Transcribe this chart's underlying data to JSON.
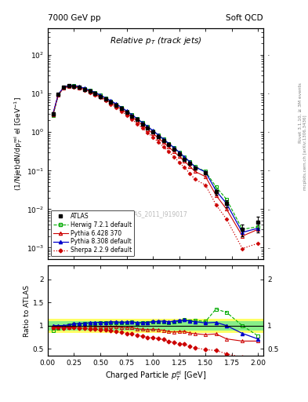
{
  "title_top_left": "7000 GeV pp",
  "title_top_right": "Soft QCD",
  "right_label_top": "Rivet 3.1.10, ≥ 3M events",
  "right_label_bot": "mcplots.cern.ch [arXiv:1306.3436]",
  "watermark": "ATLAS_2011_I919017",
  "plot_title": "Relative p$_{T}$ (track jets)",
  "ylabel_main": "(1/Njet)dN/dp$^{rel}_{T}$ el [GeV$^{-1}$]",
  "ylabel_ratio": "Ratio to ATLAS",
  "xlabel": "Charged Particle $p^{el}_{T}$ [GeV]",
  "atlas_x": [
    0.05,
    0.1,
    0.15,
    0.2,
    0.25,
    0.3,
    0.35,
    0.4,
    0.45,
    0.5,
    0.55,
    0.6,
    0.65,
    0.7,
    0.75,
    0.8,
    0.85,
    0.9,
    0.95,
    1.0,
    1.05,
    1.1,
    1.15,
    1.2,
    1.25,
    1.3,
    1.35,
    1.4,
    1.5,
    1.6,
    1.7,
    1.85,
    2.0
  ],
  "atlas_y": [
    3.0,
    9.5,
    14.5,
    16.0,
    15.5,
    14.5,
    13.0,
    11.5,
    10.0,
    8.5,
    7.2,
    6.0,
    5.0,
    4.1,
    3.3,
    2.6,
    2.1,
    1.65,
    1.3,
    1.0,
    0.78,
    0.6,
    0.47,
    0.36,
    0.27,
    0.2,
    0.155,
    0.115,
    0.087,
    0.028,
    0.014,
    0.003,
    0.0045
  ],
  "atlas_yerr": [
    0.3,
    0.5,
    0.7,
    0.8,
    0.8,
    0.7,
    0.7,
    0.6,
    0.5,
    0.4,
    0.35,
    0.3,
    0.25,
    0.2,
    0.17,
    0.13,
    0.1,
    0.08,
    0.065,
    0.05,
    0.04,
    0.03,
    0.024,
    0.018,
    0.014,
    0.01,
    0.008,
    0.006,
    0.007,
    0.004,
    0.003,
    0.001,
    0.002
  ],
  "herwig_x": [
    0.05,
    0.1,
    0.15,
    0.2,
    0.25,
    0.3,
    0.35,
    0.4,
    0.45,
    0.5,
    0.55,
    0.6,
    0.65,
    0.7,
    0.75,
    0.8,
    0.85,
    0.9,
    0.95,
    1.0,
    1.05,
    1.1,
    1.15,
    1.2,
    1.25,
    1.3,
    1.35,
    1.4,
    1.5,
    1.6,
    1.7,
    1.85,
    2.0
  ],
  "herwig_y": [
    2.7,
    9.0,
    14.3,
    16.2,
    16.0,
    15.0,
    13.5,
    12.0,
    10.5,
    9.0,
    7.6,
    6.4,
    5.3,
    4.35,
    3.5,
    2.8,
    2.2,
    1.75,
    1.38,
    1.08,
    0.84,
    0.65,
    0.5,
    0.39,
    0.295,
    0.225,
    0.17,
    0.128,
    0.095,
    0.038,
    0.018,
    0.003,
    0.0035
  ],
  "pythia6_x": [
    0.05,
    0.1,
    0.15,
    0.2,
    0.25,
    0.3,
    0.35,
    0.4,
    0.45,
    0.5,
    0.55,
    0.6,
    0.65,
    0.7,
    0.75,
    0.8,
    0.85,
    0.9,
    0.95,
    1.0,
    1.05,
    1.1,
    1.15,
    1.2,
    1.25,
    1.3,
    1.35,
    1.4,
    1.5,
    1.6,
    1.7,
    1.85,
    2.0
  ],
  "pythia6_y": [
    2.9,
    9.3,
    14.0,
    15.5,
    15.2,
    14.3,
    12.8,
    11.3,
    9.8,
    8.3,
    7.0,
    5.85,
    4.85,
    3.95,
    3.15,
    2.5,
    1.95,
    1.52,
    1.18,
    0.92,
    0.71,
    0.54,
    0.41,
    0.31,
    0.235,
    0.175,
    0.13,
    0.095,
    0.07,
    0.023,
    0.01,
    0.002,
    0.003
  ],
  "pythia8_x": [
    0.05,
    0.1,
    0.15,
    0.2,
    0.25,
    0.3,
    0.35,
    0.4,
    0.45,
    0.5,
    0.55,
    0.6,
    0.65,
    0.7,
    0.75,
    0.8,
    0.85,
    0.9,
    0.95,
    1.0,
    1.05,
    1.1,
    1.15,
    1.2,
    1.25,
    1.3,
    1.35,
    1.4,
    1.5,
    1.6,
    1.7,
    1.85,
    2.0
  ],
  "pythia8_y": [
    3.0,
    9.5,
    14.5,
    16.3,
    16.1,
    15.2,
    13.7,
    12.2,
    10.7,
    9.1,
    7.7,
    6.5,
    5.4,
    4.4,
    3.55,
    2.82,
    2.23,
    1.76,
    1.39,
    1.09,
    0.85,
    0.66,
    0.51,
    0.395,
    0.3,
    0.225,
    0.17,
    0.125,
    0.092,
    0.03,
    0.014,
    0.0025,
    0.0032
  ],
  "sherpa_x": [
    0.05,
    0.1,
    0.15,
    0.2,
    0.25,
    0.3,
    0.35,
    0.4,
    0.45,
    0.5,
    0.55,
    0.6,
    0.65,
    0.7,
    0.75,
    0.8,
    0.85,
    0.9,
    0.95,
    1.0,
    1.05,
    1.1,
    1.15,
    1.2,
    1.25,
    1.3,
    1.35,
    1.4,
    1.5,
    1.6,
    1.7,
    1.85,
    2.0
  ],
  "sherpa_y": [
    2.9,
    9.2,
    13.8,
    15.3,
    14.9,
    13.8,
    12.3,
    10.7,
    9.2,
    7.8,
    6.5,
    5.35,
    4.35,
    3.5,
    2.75,
    2.15,
    1.65,
    1.27,
    0.97,
    0.74,
    0.56,
    0.42,
    0.31,
    0.23,
    0.165,
    0.12,
    0.085,
    0.06,
    0.042,
    0.013,
    0.0055,
    0.00095,
    0.0013
  ],
  "herwig_ratio": [
    0.9,
    0.945,
    0.985,
    1.01,
    1.03,
    1.035,
    1.038,
    1.043,
    1.05,
    1.06,
    1.056,
    1.067,
    1.06,
    1.061,
    1.06,
    1.077,
    1.048,
    1.06,
    1.062,
    1.08,
    1.077,
    1.083,
    1.064,
    1.083,
    1.093,
    1.125,
    1.097,
    1.113,
    1.09,
    1.357,
    1.286,
    1.0,
    0.778
  ],
  "pythia6_ratio": [
    0.967,
    0.979,
    0.966,
    0.969,
    0.981,
    0.986,
    0.985,
    0.983,
    0.98,
    0.976,
    0.972,
    0.975,
    0.97,
    0.963,
    0.955,
    0.962,
    0.929,
    0.921,
    0.908,
    0.92,
    0.91,
    0.9,
    0.872,
    0.861,
    0.87,
    0.875,
    0.839,
    0.826,
    0.805,
    0.821,
    0.714,
    0.667,
    0.667
  ],
  "pythia8_ratio": [
    1.0,
    1.0,
    1.0,
    1.019,
    1.039,
    1.048,
    1.054,
    1.061,
    1.07,
    1.071,
    1.069,
    1.083,
    1.08,
    1.073,
    1.076,
    1.085,
    1.062,
    1.067,
    1.069,
    1.09,
    1.09,
    1.1,
    1.085,
    1.097,
    1.111,
    1.125,
    1.097,
    1.087,
    1.057,
    1.071,
    1.0,
    0.833,
    0.711
  ],
  "sherpa_ratio": [
    0.967,
    0.968,
    0.952,
    0.956,
    0.961,
    0.952,
    0.946,
    0.93,
    0.92,
    0.918,
    0.903,
    0.892,
    0.87,
    0.854,
    0.833,
    0.827,
    0.786,
    0.77,
    0.746,
    0.74,
    0.718,
    0.7,
    0.66,
    0.639,
    0.611,
    0.6,
    0.548,
    0.522,
    0.483,
    0.464,
    0.393,
    0.317,
    0.289
  ],
  "herwig_color": "#00aa00",
  "pythia6_color": "#cc0000",
  "pythia8_color": "#0000cc",
  "sherpa_color": "#cc0000",
  "atlas_color": "#000000",
  "yellow_band_color": "#ffff66",
  "green_band_color": "#88ee88",
  "ylim_main": [
    0.0005,
    500
  ],
  "ylim_ratio": [
    0.35,
    2.3
  ],
  "xlim": [
    0.0,
    2.05
  ]
}
